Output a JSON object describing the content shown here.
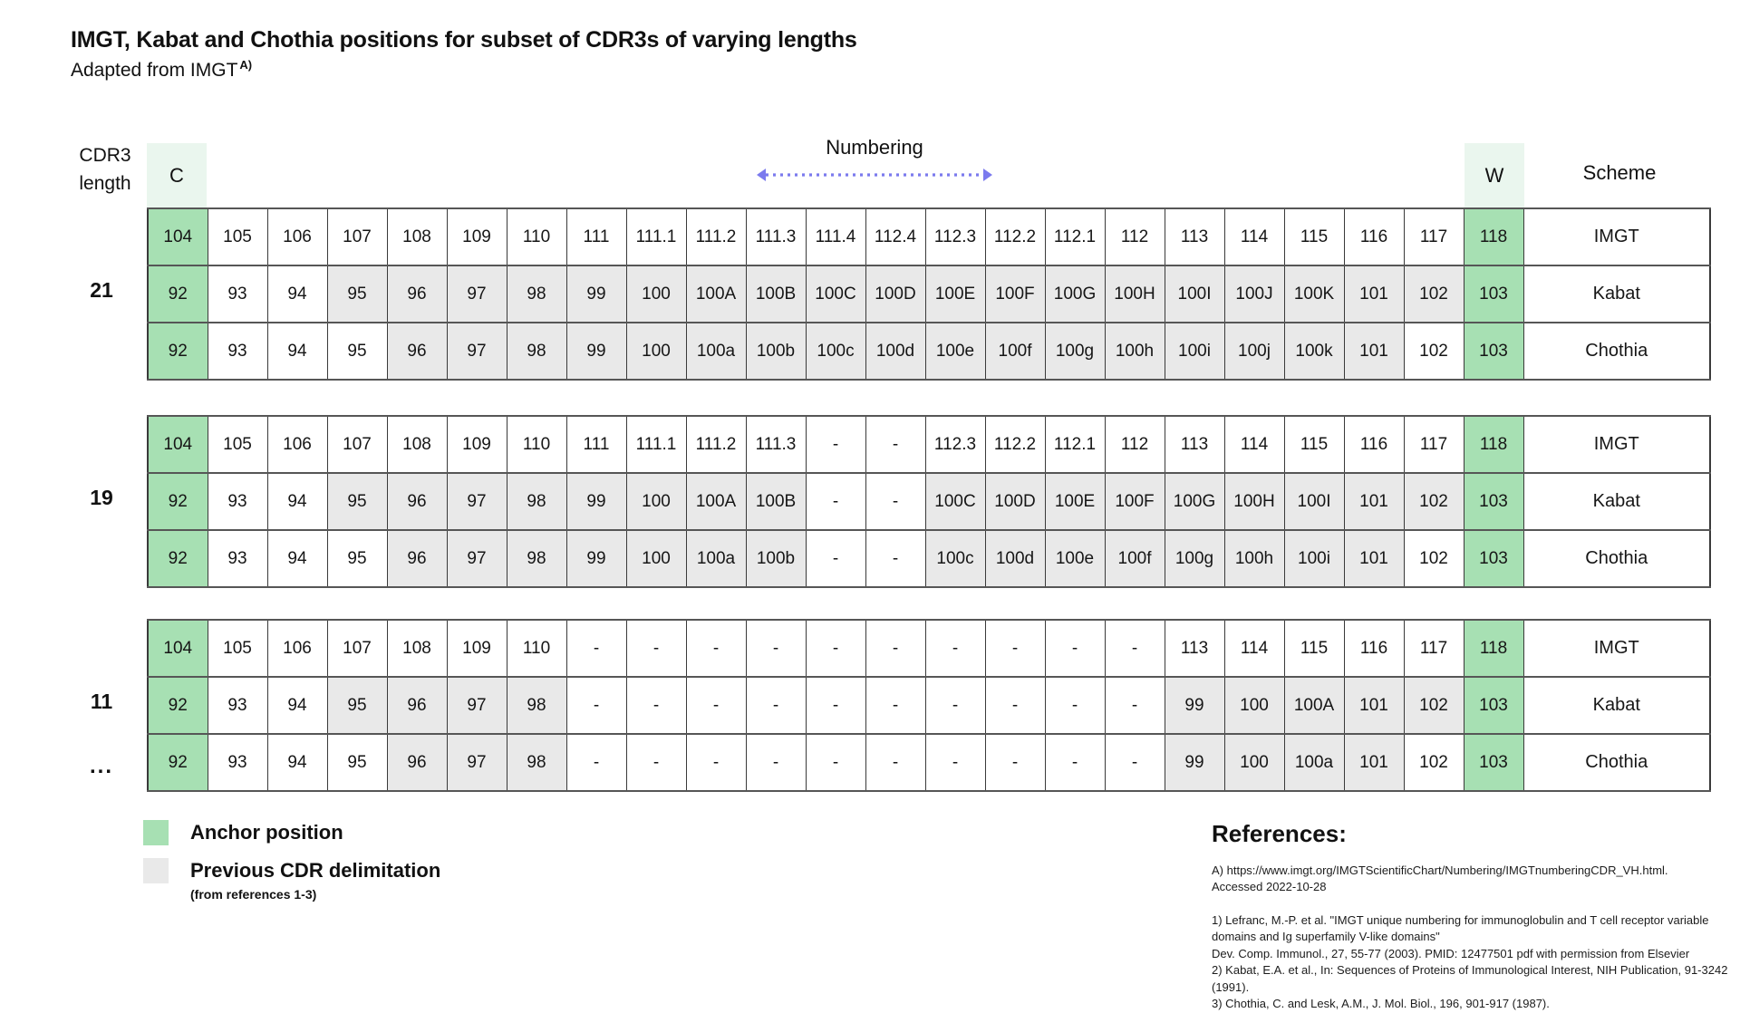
{
  "title": "IMGT, Kabat and Chothia positions for subset of CDR3s of varying lengths",
  "subtitle": "Adapted from IMGT",
  "subtitle_sup": "A)",
  "header": {
    "row_label_line1": "CDR3",
    "row_label_line2": "length",
    "c_label": "C",
    "numbering_label": "Numbering",
    "w_label": "W",
    "scheme_label": "Scheme"
  },
  "colors": {
    "anchor_green": "#a7e0b3",
    "header_light_green": "#eaf6ee",
    "prev_cdr_gray": "#e9e9e9",
    "arrow_purple": "#7b7aee",
    "border_dark": "#3a3a3a"
  },
  "ellipsis": "...",
  "groups": [
    {
      "length_label": "21",
      "rows": [
        {
          "scheme": "IMGT",
          "cells": [
            "104|a",
            "105",
            "106",
            "107",
            "108",
            "109",
            "110",
            "111",
            "111.1",
            "111.2",
            "111.3",
            "111.4",
            "112.4",
            "112.3",
            "112.2",
            "112.1",
            "112",
            "113",
            "114",
            "115",
            "116",
            "117",
            "118|a"
          ]
        },
        {
          "scheme": "Kabat",
          "cells": [
            "92|a",
            "93",
            "94",
            "95|p",
            "96|p",
            "97|p",
            "98|p",
            "99|p",
            "100|p",
            "100A|p",
            "100B|p",
            "100C|p",
            "100D|p",
            "100E|p",
            "100F|p",
            "100G|p",
            "100H|p",
            "100I|p",
            "100J|p",
            "100K|p",
            "101|p",
            "102|p",
            "103|a"
          ]
        },
        {
          "scheme": "Chothia",
          "cells": [
            "92|a",
            "93",
            "94",
            "95",
            "96|p",
            "97|p",
            "98|p",
            "99|p",
            "100|p",
            "100a|p",
            "100b|p",
            "100c|p",
            "100d|p",
            "100e|p",
            "100f|p",
            "100g|p",
            "100h|p",
            "100i|p",
            "100j|p",
            "100k|p",
            "101|p",
            "102",
            "103|a"
          ]
        }
      ]
    },
    {
      "length_label": "19",
      "rows": [
        {
          "scheme": "IMGT",
          "cells": [
            "104|a",
            "105",
            "106",
            "107",
            "108",
            "109",
            "110",
            "111",
            "111.1",
            "111.2",
            "111.3",
            "-",
            "-",
            "112.3",
            "112.2",
            "112.1",
            "112",
            "113",
            "114",
            "115",
            "116",
            "117",
            "118|a"
          ]
        },
        {
          "scheme": "Kabat",
          "cells": [
            "92|a",
            "93",
            "94",
            "95|p",
            "96|p",
            "97|p",
            "98|p",
            "99|p",
            "100|p",
            "100A|p",
            "100B|p",
            "-",
            "-",
            "100C|p",
            "100D|p",
            "100E|p",
            "100F|p",
            "100G|p",
            "100H|p",
            "100I|p",
            "101|p",
            "102|p",
            "103|a"
          ]
        },
        {
          "scheme": "Chothia",
          "cells": [
            "92|a",
            "93",
            "94",
            "95",
            "96|p",
            "97|p",
            "98|p",
            "99|p",
            "100|p",
            "100a|p",
            "100b|p",
            "-",
            "-",
            "100c|p",
            "100d|p",
            "100e|p",
            "100f|p",
            "100g|p",
            "100h|p",
            "100i|p",
            "101|p",
            "102",
            "103|a"
          ]
        }
      ]
    },
    {
      "length_label": "11",
      "rows": [
        {
          "scheme": "IMGT",
          "cells": [
            "104|a",
            "105",
            "106",
            "107",
            "108",
            "109",
            "110",
            "-",
            "-",
            "-",
            "-",
            "-",
            "-",
            "-",
            "-",
            "-",
            "-",
            "113",
            "114",
            "115",
            "116",
            "117",
            "118|a"
          ]
        },
        {
          "scheme": "Kabat",
          "cells": [
            "92|a",
            "93",
            "94",
            "95|p",
            "96|p",
            "97|p",
            "98|p",
            "-",
            "-",
            "-",
            "-",
            "-",
            "-",
            "-",
            "-",
            "-",
            "-",
            "99|p",
            "100|p",
            "100A|p",
            "101|p",
            "102|p",
            "103|a"
          ]
        },
        {
          "scheme": "Chothia",
          "cells": [
            "92|a",
            "93",
            "94",
            "95",
            "96|p",
            "97|p",
            "98|p",
            "-",
            "-",
            "-",
            "-",
            "-",
            "-",
            "-",
            "-",
            "-",
            "-",
            "99|p",
            "100|p",
            "100a|p",
            "101|p",
            "102",
            "103|a"
          ]
        }
      ]
    }
  ],
  "legend": {
    "anchor_label": "Anchor position",
    "prev_label": "Previous CDR delimitation",
    "prev_sublabel": "(from references 1-3)"
  },
  "references": {
    "heading": "References:",
    "note_a": "A) https://www.imgt.org/IMGTScientificChart/Numbering/IMGTnumberingCDR_VH.html.\nAccessed 2022-10-28",
    "body": "1) Lefranc, M.-P. et al. \"IMGT unique numbering for immunoglobulin and T cell receptor variable domains and Ig superfamily V-like domains\"\nDev. Comp. Immunol., 27, 55-77 (2003). PMID: 12477501 pdf with permission from Elsevier\n2) Kabat, E.A. et al., In: Sequences of Proteins of Immunological Interest, NIH Publication, 91-3242 (1991).\n3) Chothia, C. and Lesk, A.M., J. Mol. Biol., 196, 901-917 (1987)."
  }
}
